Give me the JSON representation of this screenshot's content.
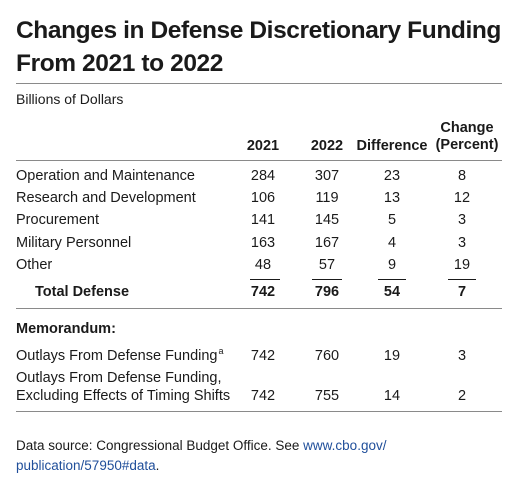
{
  "title_line1": "Changes in Defense Discretionary Funding",
  "title_line2": "From 2021 to 2022",
  "subtitle": "Billions of Dollars",
  "columns": {
    "y2021": "2021",
    "y2022": "2022",
    "difference": "Difference",
    "change_line1": "Change",
    "change_line2": "(Percent)"
  },
  "rows": [
    {
      "label": "Operation and Maintenance",
      "v2021": "284",
      "v2022": "307",
      "diff": "23",
      "pct": "8"
    },
    {
      "label": "Research and Development",
      "v2021": "106",
      "v2022": "119",
      "diff": "13",
      "pct": "12"
    },
    {
      "label": "Procurement",
      "v2021": "141",
      "v2022": "145",
      "diff": "5",
      "pct": "3"
    },
    {
      "label": "Military Personnel",
      "v2021": "163",
      "v2022": "167",
      "diff": "4",
      "pct": "3"
    },
    {
      "label": "Other",
      "v2021": "48",
      "v2022": "57",
      "diff": "9",
      "pct": "19"
    }
  ],
  "total": {
    "label": "Total Defense",
    "v2021": "742",
    "v2022": "796",
    "diff": "54",
    "pct": "7"
  },
  "memorandum": {
    "label": "Memorandum:",
    "rows": [
      {
        "label": "Outlays From Defense Funding",
        "note": "a",
        "v2021": "742",
        "v2022": "760",
        "diff": "19",
        "pct": "3"
      },
      {
        "label_line1": "Outlays From Defense Funding,",
        "label_line2": "Excluding Effects of Timing Shifts",
        "v2021": "742",
        "v2022": "755",
        "diff": "14",
        "pct": "2"
      }
    ]
  },
  "source": {
    "prefix": "Data source: Congressional Budget Office. See ",
    "link_part1": "www.cbo.gov/",
    "link_part2": "publication/57950#data",
    "suffix": "."
  },
  "colors": {
    "text": "#1a1a1a",
    "rule": "#8a8a8a",
    "link": "#1f4e9a"
  }
}
